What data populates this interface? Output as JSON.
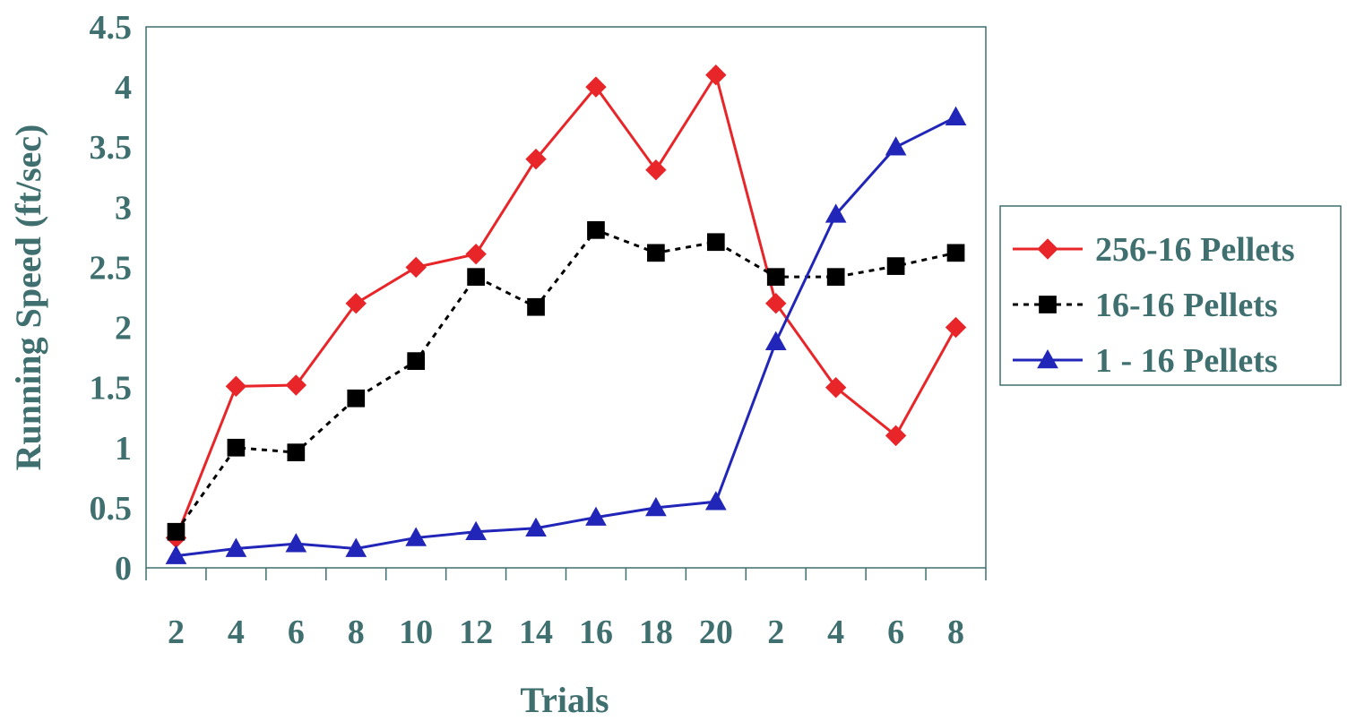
{
  "chart_data": {
    "type": "line",
    "categories": [
      "2",
      "4",
      "6",
      "8",
      "10",
      "12",
      "14",
      "16",
      "18",
      "20",
      "2",
      "4",
      "6",
      "8"
    ],
    "xlabel": "Trials",
    "ylabel": "Running Speed (ft/sec)",
    "ylim": [
      0,
      4.5
    ],
    "yticks": [
      "0",
      "0.5",
      "1",
      "1.5",
      "2",
      "2.5",
      "3",
      "3.5",
      "4",
      "4.5"
    ],
    "grid": false,
    "legend_position": "right",
    "series": [
      {
        "name": "256-16 Pellets",
        "color": "#e8262a",
        "marker": "diamond",
        "line_style": "solid",
        "values": [
          0.25,
          1.51,
          1.52,
          2.2,
          2.5,
          2.61,
          3.4,
          4.0,
          3.31,
          4.1,
          2.2,
          1.5,
          1.1,
          2.0
        ]
      },
      {
        "name": "16-16 Pellets",
        "color": "#000000",
        "marker": "square",
        "line_style": "dotted",
        "values": [
          0.3,
          1.0,
          0.96,
          1.41,
          1.72,
          2.42,
          2.17,
          2.81,
          2.62,
          2.71,
          2.42,
          2.42,
          2.51,
          2.62
        ]
      },
      {
        "name": "1 - 16 Pellets",
        "color": "#2226b8",
        "marker": "triangle",
        "line_style": "solid",
        "values": [
          0.1,
          0.16,
          0.2,
          0.16,
          0.25,
          0.3,
          0.33,
          0.42,
          0.5,
          0.55,
          1.88,
          2.94,
          3.5,
          3.75
        ]
      }
    ]
  }
}
